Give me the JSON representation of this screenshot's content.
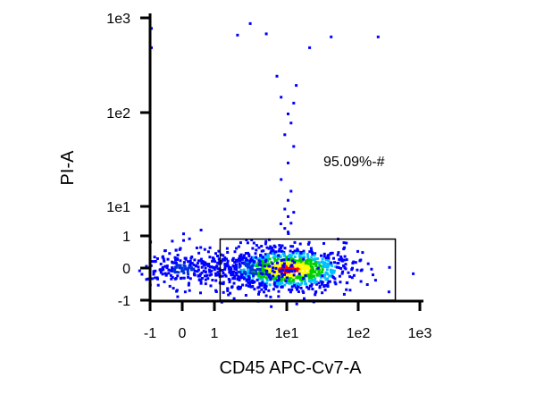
{
  "chart_data": {
    "type": "scatter",
    "title": "",
    "xlabel": "CD45 APC-Cv7-A",
    "ylabel": "PI-A",
    "x_scale": "biexponential",
    "y_scale": "biexponential",
    "xlim": [
      -1,
      1000
    ],
    "ylim": [
      -1,
      1000
    ],
    "x_ticks": [
      {
        "value": -1,
        "label": "-1"
      },
      {
        "value": 0,
        "label": "0"
      },
      {
        "value": 1,
        "label": "1"
      },
      {
        "value": 10,
        "label": "1e1"
      },
      {
        "value": 100,
        "label": "1e2"
      },
      {
        "value": 1000,
        "label": "1e3"
      }
    ],
    "y_ticks": [
      {
        "value": -1,
        "label": "-1"
      },
      {
        "value": 0,
        "label": "0"
      },
      {
        "value": 1,
        "label": "1"
      },
      {
        "value": 10,
        "label": "1e1"
      },
      {
        "value": 100,
        "label": "1e2"
      },
      {
        "value": 1000,
        "label": "1e3"
      }
    ],
    "grid": false,
    "color_by": "density",
    "density_colors": [
      "#0000ff",
      "#00c0ff",
      "#00d000",
      "#ffff00",
      "#ff0000"
    ],
    "populations": [
      {
        "center": [
          10,
          0
        ],
        "spread": [
          0.45,
          0.35
        ],
        "count": 900
      },
      {
        "center": [
          3,
          0
        ],
        "spread": [
          0.35,
          0.3
        ],
        "count": 220
      },
      {
        "center": [
          0,
          0
        ],
        "spread": [
          0.25,
          0.3
        ],
        "count": 200
      }
    ],
    "sparse_points": [
      [
        10,
        1.5
      ],
      [
        9,
        2
      ],
      [
        11,
        3
      ],
      [
        10,
        5
      ],
      [
        12,
        7
      ],
      [
        9,
        9
      ],
      [
        10,
        12
      ],
      [
        11,
        15
      ],
      [
        8,
        20
      ],
      [
        10,
        30
      ],
      [
        12,
        45
      ],
      [
        9,
        60
      ],
      [
        11,
        80
      ],
      [
        10,
        100
      ],
      [
        8,
        150
      ],
      [
        12,
        130
      ],
      [
        7,
        250
      ],
      [
        13,
        200
      ],
      [
        5,
        700
      ],
      [
        3,
        900
      ],
      [
        2,
        680
      ],
      [
        20,
        500
      ],
      [
        40,
        650
      ],
      [
        200,
        650
      ],
      [
        -1,
        800
      ],
      [
        -1,
        500
      ],
      [
        0,
        0.9
      ],
      [
        0,
        1.3
      ],
      [
        30,
        -0.2
      ],
      [
        40,
        0.2
      ],
      [
        300,
        -0.7
      ],
      [
        1.5,
        0.1
      ],
      [
        2,
        -0.3
      ],
      [
        60,
        0.1
      ]
    ],
    "gates": [
      {
        "x_range": [
          1.2,
          400
        ],
        "y_range": [
          -1,
          0.9
        ],
        "label": "95.09%-#"
      }
    ]
  }
}
